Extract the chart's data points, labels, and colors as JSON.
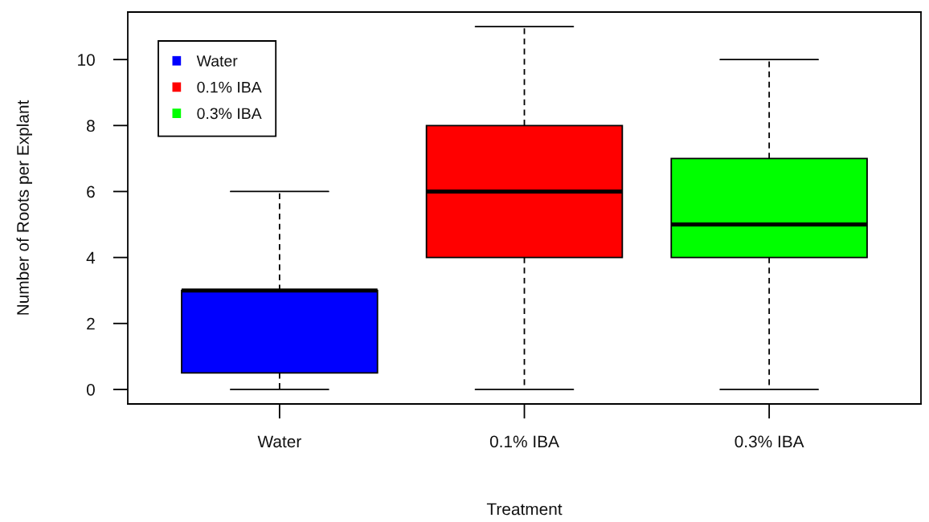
{
  "chart_data": {
    "type": "box",
    "xlabel": "Treatment",
    "ylabel": "Number of Roots per Explant",
    "categories": [
      "Water",
      "0.1% IBA",
      "0.3% IBA"
    ],
    "series": [
      {
        "name": "Water",
        "color": "#0000ff",
        "boxes": [
          {
            "low": 0,
            "q1": 0.5,
            "median": 3,
            "q3": 3,
            "high": 6
          },
          null,
          null
        ]
      },
      {
        "name": "0.1% IBA",
        "color": "#ff0000",
        "boxes": [
          null,
          {
            "low": 0,
            "q1": 4,
            "median": 6,
            "q3": 8,
            "high": 11
          },
          null
        ]
      },
      {
        "name": "0.3% IBA",
        "color": "#00ff00",
        "boxes": [
          null,
          null,
          {
            "low": 0,
            "q1": 4,
            "median": 5,
            "q3": 7,
            "high": 10
          }
        ]
      }
    ],
    "ylim": [
      -0.44,
      11.44
    ],
    "yticks": [
      0,
      2,
      4,
      6,
      8,
      10
    ],
    "grid": false,
    "legend": "top left"
  }
}
